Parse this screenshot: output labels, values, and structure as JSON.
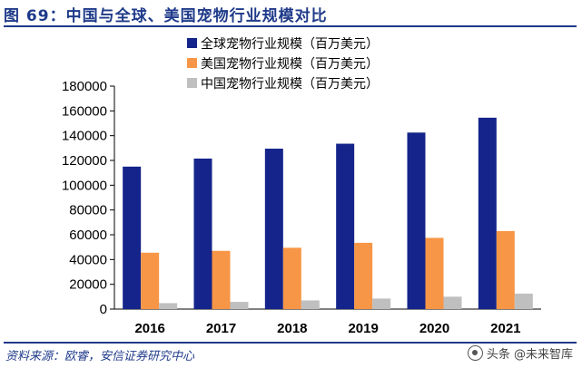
{
  "figure": {
    "title": "图 69：中国与全球、美国宠物行业规模对比",
    "source": "资料来源：欧睿，安信证券研究中心",
    "watermark": "头条 @未来智库"
  },
  "chart_data": {
    "type": "bar",
    "categories": [
      "2016",
      "2017",
      "2018",
      "2019",
      "2020",
      "2021"
    ],
    "series": [
      {
        "name": "全球宠物行业规模（百万美元）",
        "color": "#14248a",
        "values": [
          115000,
          121500,
          129500,
          133500,
          142500,
          154500
        ]
      },
      {
        "name": "美国宠物行业规模（百万美元）",
        "color": "#f79646",
        "values": [
          45500,
          47000,
          49500,
          53500,
          57500,
          63000
        ]
      },
      {
        "name": "中国宠物行业规模（百万美元）",
        "color": "#bfbfbf",
        "values": [
          4800,
          5800,
          7000,
          8500,
          10000,
          12500
        ]
      }
    ],
    "ylim": [
      0,
      180000
    ],
    "yticks": [
      "0",
      "20000",
      "40000",
      "60000",
      "80000",
      "100000",
      "120000",
      "140000",
      "160000",
      "180000"
    ],
    "title": "",
    "xlabel": "",
    "ylabel": "",
    "grid": false,
    "legend_position": "top-center"
  }
}
